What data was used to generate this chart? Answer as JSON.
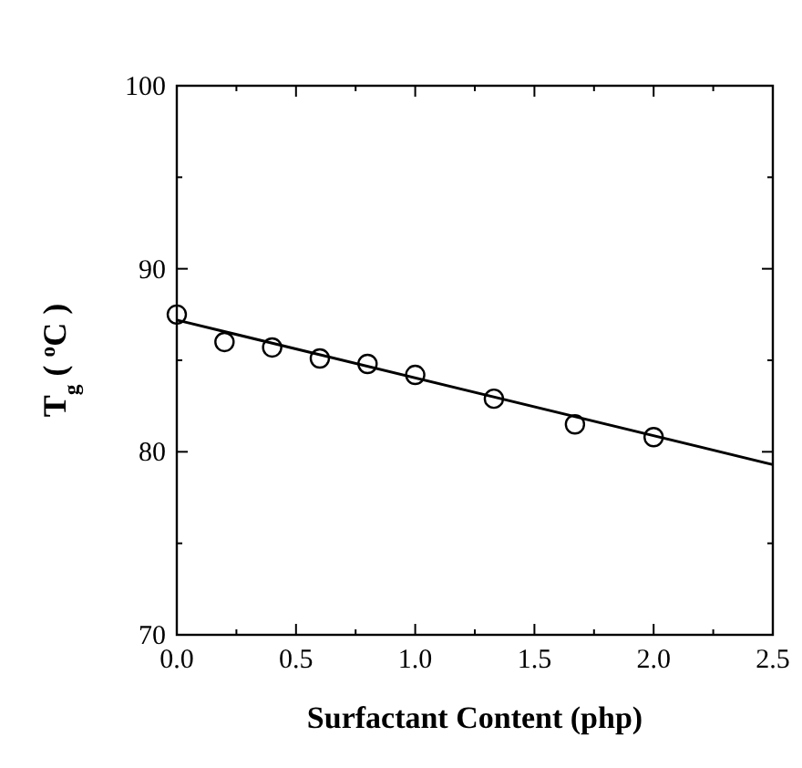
{
  "chart_data": {
    "type": "scatter",
    "xlabel": "Surfactant Content (php)",
    "ylabel": "T$_{g}$ ( $^{o}$C )",
    "xlim": [
      0,
      2.5
    ],
    "ylim": [
      70,
      100
    ],
    "xticks": [
      {
        "value": 0,
        "label": "0.0"
      },
      {
        "value": 0.25,
        "label": null
      },
      {
        "value": 0.5,
        "label": "0.5"
      },
      {
        "value": 0.75,
        "label": null
      },
      {
        "value": 1,
        "label": "1.0"
      },
      {
        "value": 1.25,
        "label": null
      },
      {
        "value": 1.5,
        "label": "1.5"
      },
      {
        "value": 1.75,
        "label": null
      },
      {
        "value": 2,
        "label": "2.0"
      },
      {
        "value": 2.25,
        "label": null
      },
      {
        "value": 2.5,
        "label": "2.5"
      }
    ],
    "yticks": [
      70,
      {
        "value": 75,
        "label": null
      },
      80,
      {
        "value": 85,
        "label": null
      },
      90,
      {
        "value": 95,
        "label": null
      },
      100
    ],
    "grid": false,
    "series": [
      {
        "type": "scatter",
        "marker": "circle",
        "color": "#000000",
        "x": [
          0,
          0.2,
          0.4,
          0.6,
          0.8,
          1.0,
          1.33,
          1.67,
          2.0
        ],
        "values": [
          87.5,
          86.0,
          85.7,
          85.1,
          84.8,
          84.2,
          82.9,
          81.5,
          80.8
        ]
      },
      {
        "type": "line",
        "marker": "none",
        "line_style": "solid",
        "color": "#000000",
        "x": [
          0,
          2.5
        ],
        "values": [
          87.2,
          79.3
        ]
      }
    ]
  }
}
